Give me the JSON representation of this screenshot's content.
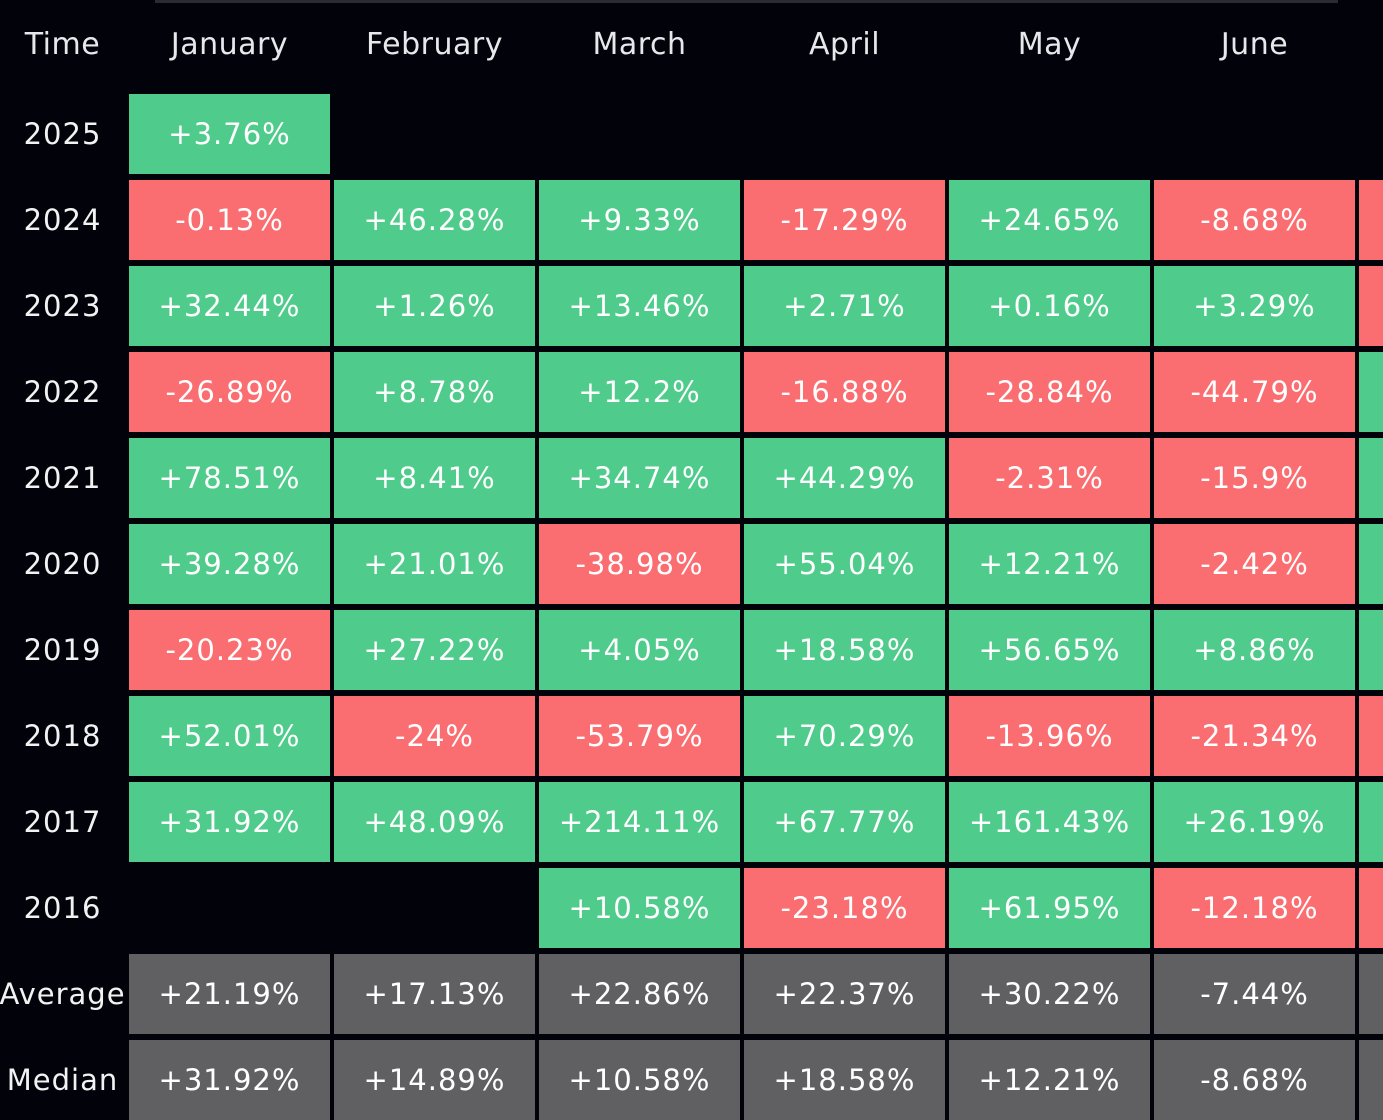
{
  "header": {
    "time": "Time",
    "months": [
      "January",
      "February",
      "March",
      "April",
      "May",
      "June"
    ]
  },
  "rows": [
    {
      "label": "2025",
      "cells": [
        {
          "v": "+3.76%"
        },
        {
          "v": ""
        },
        {
          "v": ""
        },
        {
          "v": ""
        },
        {
          "v": ""
        },
        {
          "v": ""
        }
      ]
    },
    {
      "label": "2024",
      "cells": [
        {
          "v": "-0.13%"
        },
        {
          "v": "+46.28%"
        },
        {
          "v": "+9.33%"
        },
        {
          "v": "-17.29%"
        },
        {
          "v": "+24.65%"
        },
        {
          "v": "-8.68%"
        }
      ]
    },
    {
      "label": "2023",
      "cells": [
        {
          "v": "+32.44%"
        },
        {
          "v": "+1.26%"
        },
        {
          "v": "+13.46%"
        },
        {
          "v": "+2.71%"
        },
        {
          "v": "+0.16%"
        },
        {
          "v": "+3.29%"
        }
      ]
    },
    {
      "label": "2022",
      "cells": [
        {
          "v": "-26.89%"
        },
        {
          "v": "+8.78%"
        },
        {
          "v": "+12.2%"
        },
        {
          "v": "-16.88%"
        },
        {
          "v": "-28.84%"
        },
        {
          "v": "-44.79%"
        }
      ]
    },
    {
      "label": "2021",
      "cells": [
        {
          "v": "+78.51%"
        },
        {
          "v": "+8.41%"
        },
        {
          "v": "+34.74%"
        },
        {
          "v": "+44.29%"
        },
        {
          "v": "-2.31%"
        },
        {
          "v": "-15.9%"
        }
      ]
    },
    {
      "label": "2020",
      "cells": [
        {
          "v": "+39.28%"
        },
        {
          "v": "+21.01%"
        },
        {
          "v": "-38.98%"
        },
        {
          "v": "+55.04%"
        },
        {
          "v": "+12.21%"
        },
        {
          "v": "-2.42%"
        }
      ]
    },
    {
      "label": "2019",
      "cells": [
        {
          "v": "-20.23%"
        },
        {
          "v": "+27.22%"
        },
        {
          "v": "+4.05%"
        },
        {
          "v": "+18.58%"
        },
        {
          "v": "+56.65%"
        },
        {
          "v": "+8.86%"
        }
      ]
    },
    {
      "label": "2018",
      "cells": [
        {
          "v": "+52.01%"
        },
        {
          "v": "-24%"
        },
        {
          "v": "-53.79%"
        },
        {
          "v": "+70.29%"
        },
        {
          "v": "-13.96%"
        },
        {
          "v": "-21.34%"
        }
      ]
    },
    {
      "label": "2017",
      "cells": [
        {
          "v": "+31.92%"
        },
        {
          "v": "+48.09%"
        },
        {
          "v": "+214.11%"
        },
        {
          "v": "+67.77%"
        },
        {
          "v": "+161.43%"
        },
        {
          "v": "+26.19%"
        }
      ]
    },
    {
      "label": "2016",
      "cells": [
        {
          "v": ""
        },
        {
          "v": ""
        },
        {
          "v": "+10.58%"
        },
        {
          "v": "-23.18%"
        },
        {
          "v": "+61.95%"
        },
        {
          "v": "-12.18%"
        }
      ]
    },
    {
      "label": "Average",
      "summary": true,
      "cells": [
        {
          "v": "+21.19%"
        },
        {
          "v": "+17.13%"
        },
        {
          "v": "+22.86%"
        },
        {
          "v": "+22.37%"
        },
        {
          "v": "+30.22%"
        },
        {
          "v": "-7.44%"
        }
      ]
    },
    {
      "label": "Median",
      "summary": true,
      "cells": [
        {
          "v": "+31.92%"
        },
        {
          "v": "+14.89%"
        },
        {
          "v": "+10.58%"
        },
        {
          "v": "+18.58%"
        },
        {
          "v": "+12.21%"
        },
        {
          "v": "-8.68%"
        }
      ]
    }
  ],
  "edge_column": [
    "",
    "neg",
    "neg",
    "pos",
    "pos",
    "pos",
    "pos",
    "neg",
    "pos",
    "neg",
    "avg",
    "avg"
  ],
  "colors": {
    "positive": "#4fcb8c",
    "negative": "#fa6e72",
    "summary": "#606062",
    "background": "#02030a"
  }
}
